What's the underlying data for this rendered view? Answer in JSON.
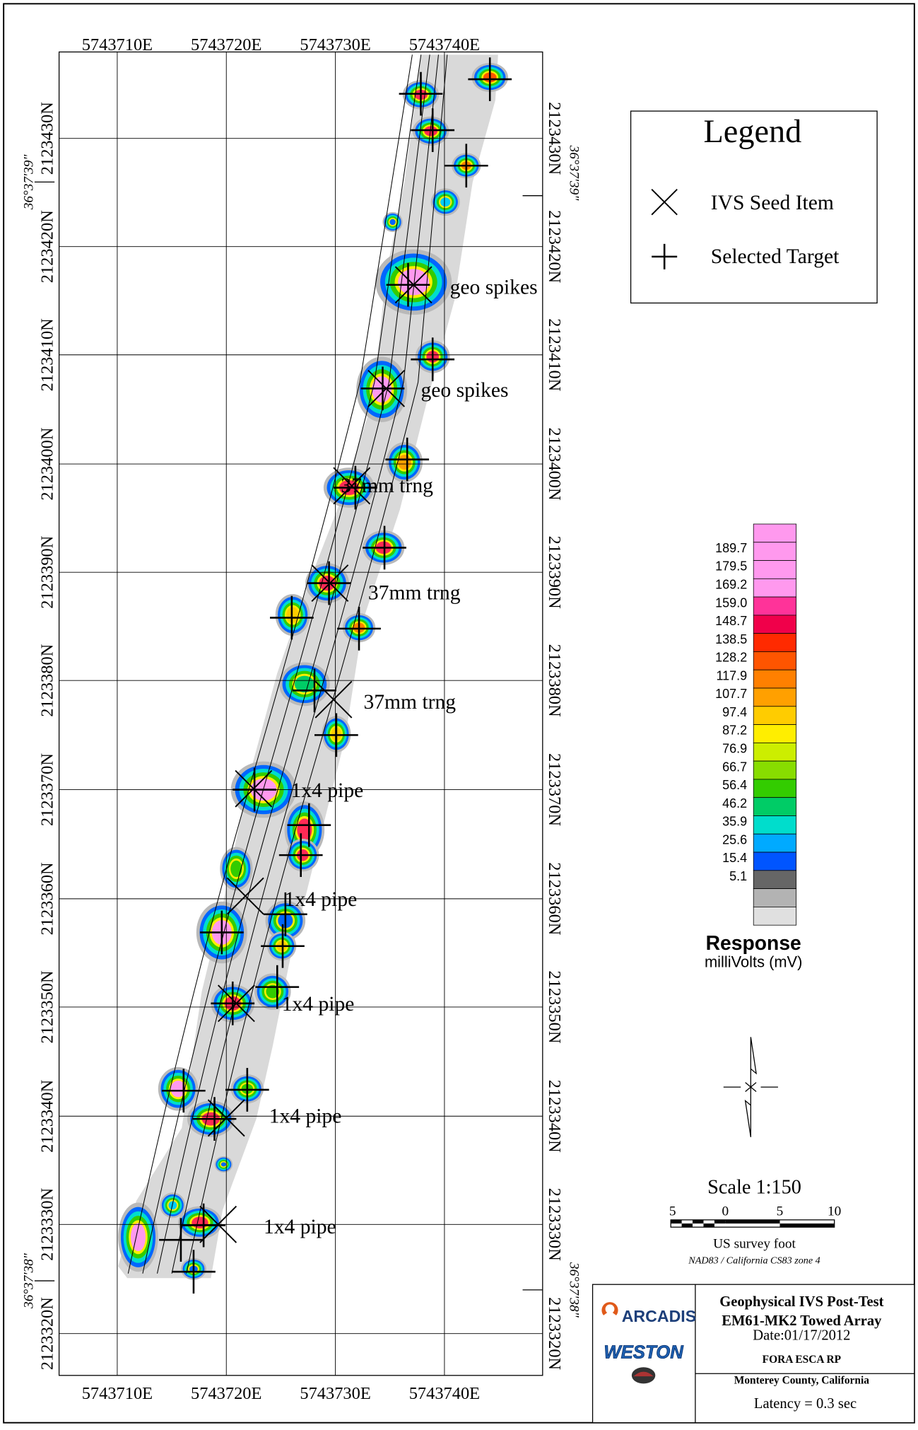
{
  "map": {
    "x_labels": [
      "5743710E",
      "5743720E",
      "5743730E",
      "5743740E"
    ],
    "y_labels": [
      "2123430N",
      "2123420N",
      "2123410N",
      "2123400N",
      "2123390N",
      "2123380N",
      "2123370N",
      "2123360N",
      "2123350N",
      "2123340N",
      "2123330N",
      "2123320N"
    ],
    "lat_labels": [
      "36°37'39\"",
      "36°37'38\""
    ],
    "annotations": [
      "geo spikes",
      "geo spikes",
      "37mm trng",
      "37mm trng",
      "37mm trng",
      "1x4 pipe",
      "1x4 pipe",
      "1x4 pipe",
      "1x4 pipe",
      "1x4 pipe"
    ]
  },
  "legend": {
    "title": "Legend",
    "items": [
      "IVS Seed Item",
      "Selected Target"
    ]
  },
  "colorbar": {
    "labels": [
      "189.7",
      "179.5",
      "169.2",
      "159.0",
      "148.7",
      "138.5",
      "128.2",
      "117.9",
      "107.7",
      "97.4",
      "87.2",
      "76.9",
      "66.7",
      "56.4",
      "46.2",
      "35.9",
      "25.6",
      "15.4",
      "5.1"
    ],
    "title": "Response",
    "unit": "milliVolts (mV)"
  },
  "scale": {
    "title": "Scale 1:150",
    "ticks": [
      "5",
      "0",
      "5",
      "10"
    ],
    "unit": "US survey foot",
    "projection": "NAD83 / California CS83 zone 4"
  },
  "title_block": {
    "logos": [
      "ARCADIS",
      "WESTON"
    ],
    "lines": [
      "Geophysical IVS Post-Test",
      "EM61-MK2 Towed Array",
      "Date:01/17/2012",
      "FORA ESCA RP",
      "Monterey County, California"
    ],
    "latency": "Latency = 0.3 sec"
  }
}
